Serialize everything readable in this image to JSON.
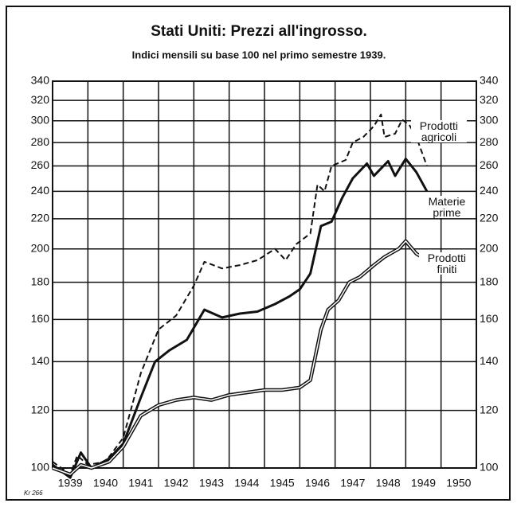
{
  "chart_data": {
    "type": "line",
    "title": "Stati Uniti: Prezzi all'ingrosso.",
    "subtitle": "Indici mensili su base 100 nel primo semestre 1939.",
    "annotation": "Kr 266",
    "xlim": [
      1939,
      1951
    ],
    "xticks": [
      {
        "value": 1939.5,
        "label": "1939"
      },
      {
        "value": 1940.5,
        "label": "1940"
      },
      {
        "value": 1941.5,
        "label": "1941"
      },
      {
        "value": 1942.5,
        "label": "1942"
      },
      {
        "value": 1943.5,
        "label": "1943"
      },
      {
        "value": 1944.5,
        "label": "1944"
      },
      {
        "value": 1945.5,
        "label": "1945"
      },
      {
        "value": 1946.5,
        "label": "1946"
      },
      {
        "value": 1947.5,
        "label": "1947"
      },
      {
        "value": 1948.5,
        "label": "1948"
      },
      {
        "value": 1949.5,
        "label": "1949"
      },
      {
        "value": 1950.5,
        "label": "1950"
      }
    ],
    "ylim": [
      100,
      340
    ],
    "yticks": [
      100,
      120,
      140,
      160,
      180,
      200,
      220,
      240,
      260,
      280,
      300,
      320,
      340
    ],
    "ylog": true,
    "grid": true,
    "series": [
      {
        "name": "Prodotti agricoli",
        "style": "dashed",
        "color": "#111111",
        "x": [
          1939.0,
          1939.5,
          1939.7,
          1940.0,
          1940.5,
          1941.0,
          1941.5,
          1942.0,
          1942.5,
          1943.0,
          1943.3,
          1943.8,
          1944.3,
          1944.8,
          1945.3,
          1945.6,
          1945.9,
          1946.3,
          1946.5,
          1946.7,
          1946.9,
          1947.3,
          1947.5,
          1947.8,
          1948.1,
          1948.3,
          1948.4,
          1948.7,
          1948.9,
          1949.1,
          1949.3,
          1949.6
        ],
        "values": [
          102,
          98,
          104,
          101,
          102,
          110,
          135,
          155,
          162,
          178,
          192,
          188,
          190,
          193,
          200,
          193,
          203,
          210,
          245,
          240,
          260,
          265,
          280,
          285,
          295,
          306,
          285,
          288,
          301,
          296,
          285,
          260
        ]
      },
      {
        "name": "Materie prime",
        "style": "solid",
        "color": "#111111",
        "x": [
          1939.0,
          1939.5,
          1939.8,
          1940.1,
          1940.6,
          1941.0,
          1941.5,
          1941.9,
          1942.3,
          1942.8,
          1943.3,
          1943.8,
          1944.3,
          1944.8,
          1945.3,
          1945.7,
          1946.0,
          1946.3,
          1946.6,
          1946.9,
          1947.2,
          1947.5,
          1947.9,
          1948.1,
          1948.5,
          1948.7,
          1949.0,
          1949.3,
          1949.6
        ],
        "values": [
          101,
          97,
          105,
          100,
          103,
          108,
          125,
          140,
          145,
          150,
          165,
          161,
          163,
          164,
          168,
          172,
          176,
          185,
          215,
          218,
          235,
          250,
          262,
          252,
          264,
          252,
          266,
          255,
          240
        ]
      },
      {
        "name": "Prodotti finiti",
        "style": "double",
        "color": "#111111",
        "x": [
          1939.0,
          1939.5,
          1939.8,
          1940.1,
          1940.6,
          1941.0,
          1941.5,
          1942.0,
          1942.5,
          1943.0,
          1943.5,
          1944.0,
          1944.5,
          1945.0,
          1945.5,
          1946.0,
          1946.3,
          1946.6,
          1946.8,
          1947.1,
          1947.4,
          1947.7,
          1948.1,
          1948.4,
          1948.8,
          1949.0,
          1949.3,
          1949.6
        ],
        "values": [
          100,
          98,
          101,
          100,
          102,
          107,
          118,
          122,
          124,
          125,
          124,
          126,
          127,
          128,
          128,
          129,
          132,
          155,
          165,
          170,
          180,
          183,
          190,
          195,
          200,
          205,
          197,
          193
        ]
      }
    ]
  }
}
